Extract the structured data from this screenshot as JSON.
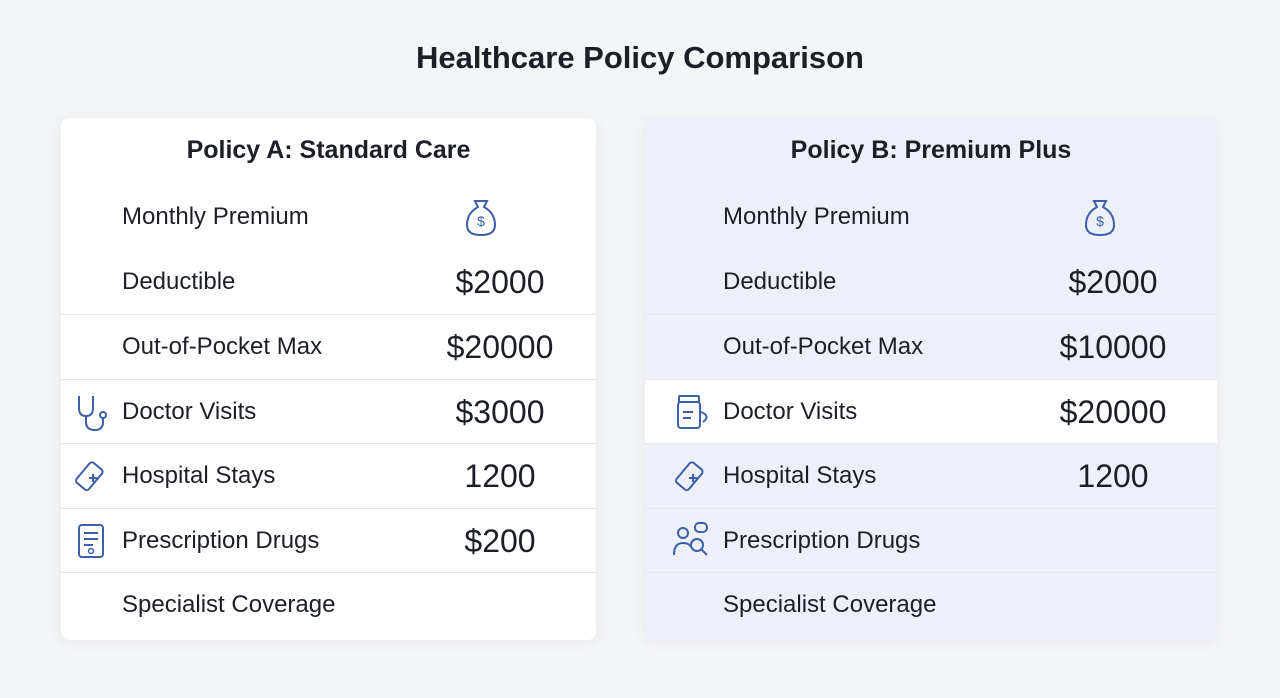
{
  "header": {
    "title": "Healthcare Policy Comparison"
  },
  "policies": [
    {
      "title": "Policy A: Standard Care",
      "rows": [
        {
          "label": "Monthly Premium"
        },
        {
          "label": "Deductible",
          "value": "$2000"
        },
        {
          "label": "Out-of-Pocket Max",
          "value": "$20000"
        },
        {
          "label": "Doctor Visits",
          "value": "$3000"
        },
        {
          "label": "Hospital Stays",
          "value": "1200"
        },
        {
          "label": "Prescription Drugs",
          "value": "$200"
        },
        {
          "label": "Specialist Coverage"
        }
      ]
    },
    {
      "title": "Policy B: Premium Plus",
      "rows": [
        {
          "label": "Monthly Premium"
        },
        {
          "label": "Deductible",
          "value": "$2000"
        },
        {
          "label": "Out-of-Pocket Max",
          "value": "$10000"
        },
        {
          "label": "Doctor Visits",
          "value": "$20000"
        },
        {
          "label": "Hospital Stays",
          "value": "1200"
        },
        {
          "label": "Prescription Drugs"
        },
        {
          "label": "Specialist Coverage"
        }
      ]
    }
  ]
}
